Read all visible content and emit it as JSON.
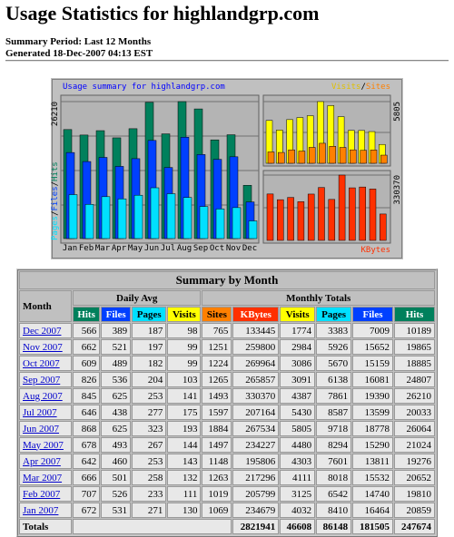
{
  "header": {
    "title": "Usage Statistics for highlandgrp.com",
    "period": "Summary Period: Last 12 Months",
    "generated": "Generated 18-Dec-2007 04:13 EST"
  },
  "graph": {
    "title": "Usage summary for highlandgrp.com",
    "separator": "/",
    "left_legend": [
      "Pages",
      "Files",
      "Hits"
    ],
    "top_legend": [
      "Visits",
      "Sites"
    ],
    "bottom_legend": "KBytes",
    "max_hits": 26210,
    "max_visits": 5805,
    "max_kbytes": 330370,
    "months": [
      "Jan",
      "Feb",
      "Mar",
      "Apr",
      "May",
      "Jun",
      "Jul",
      "Aug",
      "Sep",
      "Oct",
      "Nov",
      "Dec"
    ]
  },
  "table": {
    "title": "Summary by Month",
    "month_header": "Month",
    "daily_avg_header": "Daily Avg",
    "monthly_totals_header": "Monthly Totals",
    "columns": [
      {
        "label": "Hits",
        "color": "#00805c"
      },
      {
        "label": "Files",
        "color": "#0040ff"
      },
      {
        "label": "Pages",
        "color": "#00e0ff"
      },
      {
        "label": "Visits",
        "color": "#ffff00"
      },
      {
        "label": "Sites",
        "color": "#ff8000"
      },
      {
        "label": "KBytes",
        "color": "#ff3000"
      },
      {
        "label": "Visits",
        "color": "#ffff00"
      },
      {
        "label": "Pages",
        "color": "#00e0ff"
      },
      {
        "label": "Files",
        "color": "#0040ff"
      },
      {
        "label": "Hits",
        "color": "#00805c"
      }
    ],
    "rows": [
      [
        "Dec 2007",
        566,
        389,
        187,
        98,
        765,
        133445,
        1774,
        3383,
        7009,
        10189
      ],
      [
        "Nov 2007",
        662,
        521,
        197,
        99,
        1251,
        259800,
        2984,
        5926,
        15652,
        19865
      ],
      [
        "Oct 2007",
        609,
        489,
        182,
        99,
        1224,
        269964,
        3086,
        5670,
        15159,
        18885
      ],
      [
        "Sep 2007",
        826,
        536,
        204,
        103,
        1265,
        265857,
        3091,
        6138,
        16081,
        24807
      ],
      [
        "Aug 2007",
        845,
        625,
        253,
        141,
        1493,
        330370,
        4387,
        7861,
        19390,
        26210
      ],
      [
        "Jul 2007",
        646,
        438,
        277,
        175,
        1597,
        207164,
        5430,
        8587,
        13599,
        20033
      ],
      [
        "Jun 2007",
        868,
        625,
        323,
        193,
        1884,
        267534,
        5805,
        9718,
        18778,
        26064
      ],
      [
        "May 2007",
        678,
        493,
        267,
        144,
        1497,
        234227,
        4480,
        8294,
        15290,
        21024
      ],
      [
        "Apr 2007",
        642,
        460,
        253,
        143,
        1148,
        195806,
        4303,
        7601,
        13811,
        19276
      ],
      [
        "Mar 2007",
        666,
        501,
        258,
        132,
        1263,
        217296,
        4111,
        8018,
        15532,
        20652
      ],
      [
        "Feb 2007",
        707,
        526,
        233,
        111,
        1019,
        205799,
        3125,
        6542,
        14740,
        19810
      ],
      [
        "Jan 2007",
        672,
        531,
        271,
        130,
        1069,
        234679,
        4032,
        8410,
        16464,
        20859
      ]
    ],
    "totals": {
      "label": "Totals",
      "kbytes": 2821941,
      "visits": 46608,
      "pages": 86148,
      "files": 181505,
      "hits": 247674
    }
  }
}
